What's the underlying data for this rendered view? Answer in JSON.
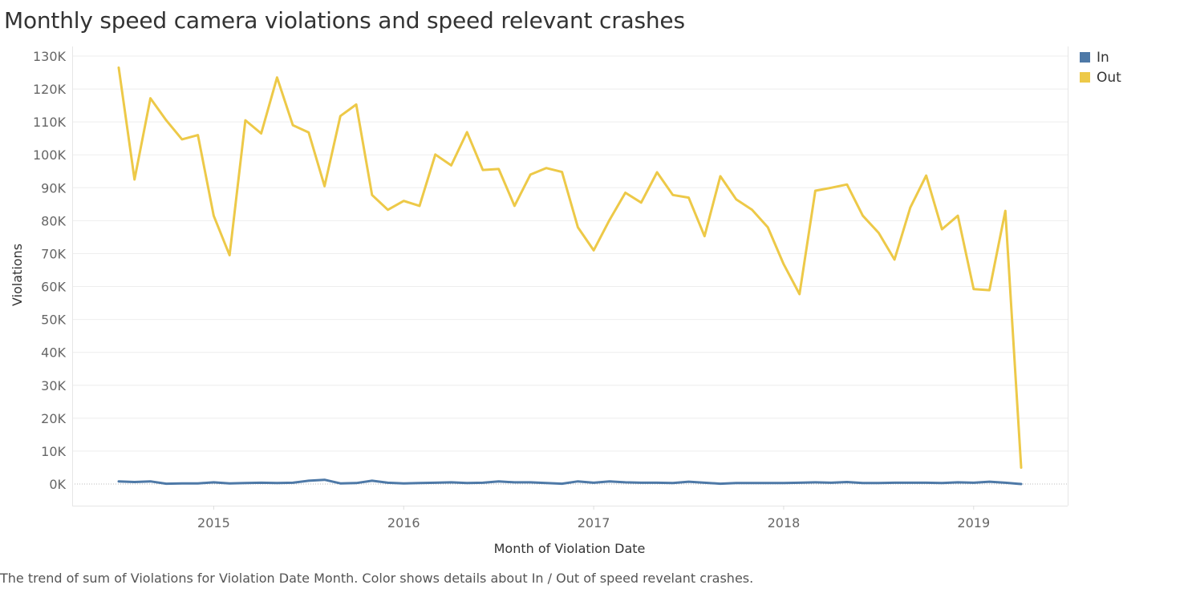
{
  "title": "Monthly speed camera violations and speed relevant crashes",
  "caption": "The trend of sum of Violations for Violation Date Month.  Color shows details about In / Out of speed revelant crashes.",
  "legend": [
    {
      "label": "In",
      "color": "#4e79a7"
    },
    {
      "label": "Out",
      "color": "#edc948"
    }
  ],
  "chart_data": {
    "type": "line",
    "xlabel": "Month of Violation Date",
    "ylabel": "Violations",
    "ylim": [
      0,
      130000
    ],
    "yticks": [
      0,
      10000,
      20000,
      30000,
      40000,
      50000,
      60000,
      70000,
      80000,
      90000,
      100000,
      110000,
      120000,
      130000
    ],
    "ytick_labels": [
      "0K",
      "10K",
      "20K",
      "30K",
      "40K",
      "50K",
      "60K",
      "70K",
      "80K",
      "90K",
      "100K",
      "110K",
      "120K",
      "130K"
    ],
    "xticks": [
      "2015",
      "2016",
      "2017",
      "2018",
      "2019"
    ],
    "xlim": [
      "2014-07",
      "2019-04"
    ],
    "x": [
      "2014-07",
      "2014-08",
      "2014-09",
      "2014-10",
      "2014-11",
      "2014-12",
      "2015-01",
      "2015-02",
      "2015-03",
      "2015-04",
      "2015-05",
      "2015-06",
      "2015-07",
      "2015-08",
      "2015-09",
      "2015-10",
      "2015-11",
      "2015-12",
      "2016-01",
      "2016-02",
      "2016-03",
      "2016-04",
      "2016-05",
      "2016-06",
      "2016-07",
      "2016-08",
      "2016-09",
      "2016-10",
      "2016-11",
      "2016-12",
      "2017-01",
      "2017-02",
      "2017-03",
      "2017-04",
      "2017-05",
      "2017-06",
      "2017-07",
      "2017-08",
      "2017-09",
      "2017-10",
      "2017-11",
      "2017-12",
      "2018-01",
      "2018-02",
      "2018-03",
      "2018-04",
      "2018-05",
      "2018-06",
      "2018-07",
      "2018-08",
      "2018-09",
      "2018-10",
      "2018-11",
      "2018-12",
      "2019-01",
      "2019-02",
      "2019-03",
      "2019-04"
    ],
    "series": [
      {
        "name": "In",
        "color": "#4e79a7",
        "values": [
          800,
          600,
          800,
          100,
          200,
          200,
          500,
          200,
          300,
          400,
          300,
          400,
          1000,
          1300,
          200,
          300,
          1000,
          400,
          200,
          300,
          400,
          500,
          300,
          400,
          800,
          500,
          500,
          300,
          100,
          800,
          400,
          800,
          500,
          400,
          400,
          300,
          700,
          400,
          100,
          300,
          300,
          300,
          300,
          400,
          500,
          400,
          600,
          300,
          300,
          400,
          400,
          400,
          300,
          500,
          400,
          700,
          400,
          0
        ]
      },
      {
        "name": "Out",
        "color": "#edc948",
        "values": [
          126500,
          92500,
          117200,
          110500,
          104700,
          106000,
          81500,
          69500,
          110500,
          106500,
          123500,
          109000,
          106800,
          90500,
          111800,
          115300,
          87800,
          83300,
          86000,
          84500,
          100100,
          96800,
          106900,
          95400,
          95700,
          84500,
          94000,
          96000,
          94800,
          78000,
          71000,
          80200,
          88500,
          85500,
          94700,
          87800,
          87000,
          75300,
          93500,
          86500,
          83300,
          78000,
          66800,
          57700,
          89100,
          90000,
          91000,
          81500,
          76300,
          68200,
          84000,
          93700,
          77400,
          81500,
          59200,
          58900,
          83000,
          5000
        ]
      }
    ]
  }
}
